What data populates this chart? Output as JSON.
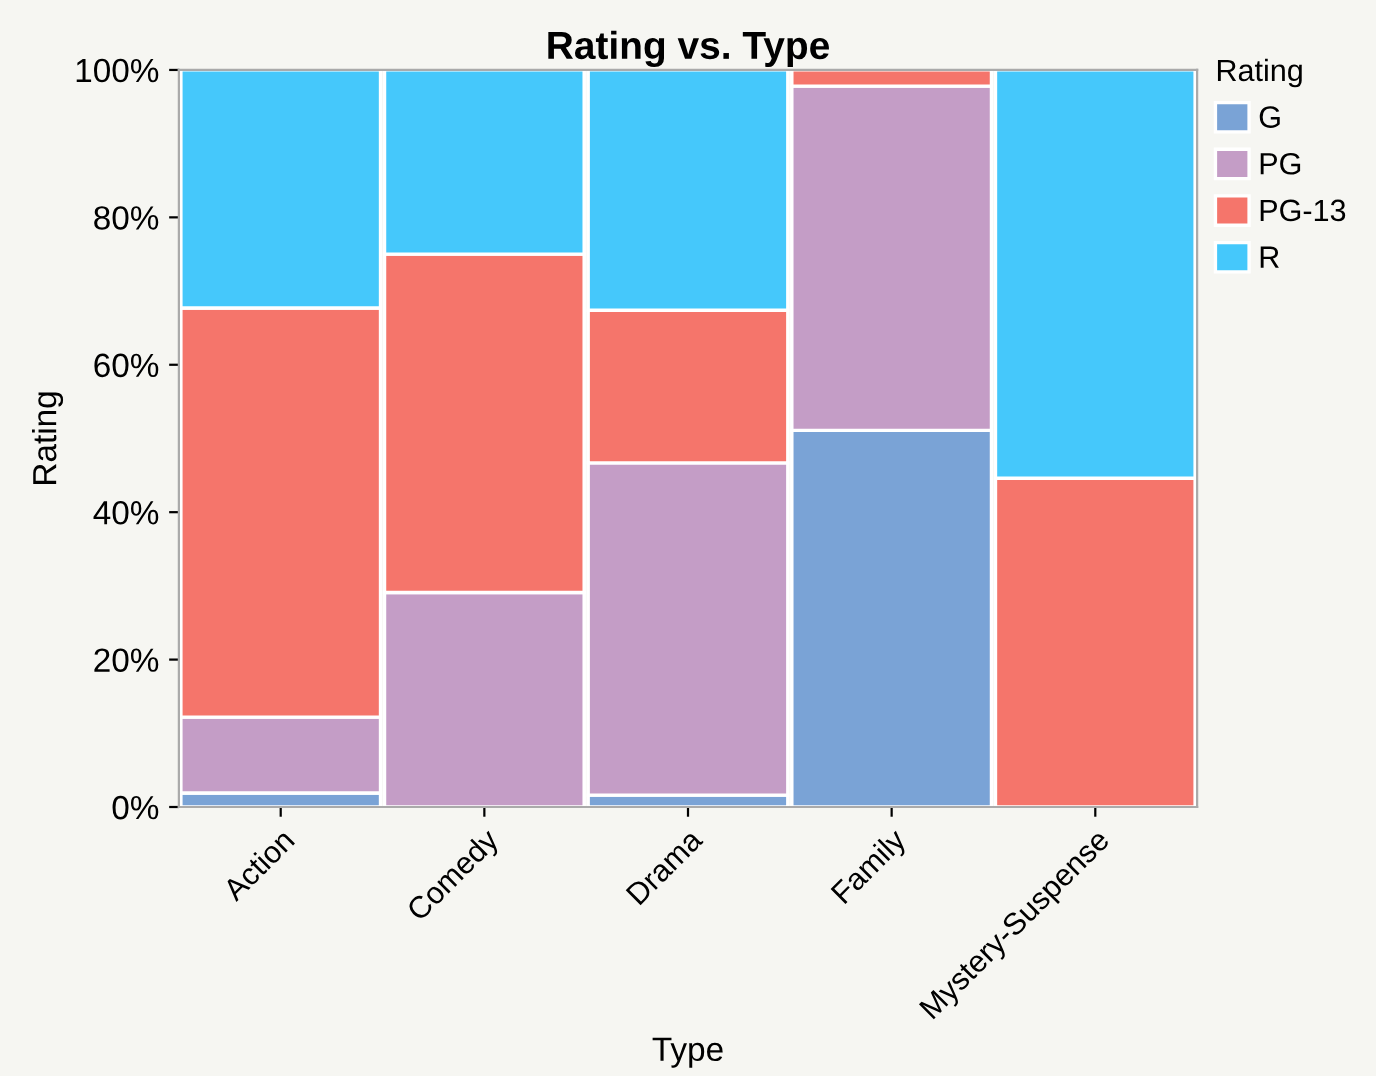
{
  "chart_data": {
    "type": "bar",
    "title": "Rating vs. Type",
    "xlabel": "Type",
    "ylabel": "Rating",
    "legend_title": "Rating",
    "categories": [
      "Action",
      "Comedy",
      "Drama",
      "Family",
      "Mystery-Suspense"
    ],
    "stacked": true,
    "series": [
      {
        "name": "G",
        "color": "#7aa3d6",
        "values": [
          1.9,
          0,
          1.6,
          51.1,
          0
        ]
      },
      {
        "name": "PG",
        "color": "#c49dc6",
        "values": [
          10.3,
          29.1,
          45.1,
          46.7,
          0
        ]
      },
      {
        "name": "PG-13",
        "color": "#f5756b",
        "values": [
          55.5,
          45.9,
          20.7,
          2.2,
          44.6
        ]
      },
      {
        "name": "R",
        "color": "#45c8fb",
        "values": [
          32.3,
          25.0,
          32.6,
          0,
          55.4
        ]
      }
    ],
    "ylim": [
      0,
      100
    ],
    "yticks": [
      {
        "value": 0,
        "label": "0%"
      },
      {
        "value": 20,
        "label": "20%"
      },
      {
        "value": 40,
        "label": "40%"
      },
      {
        "value": 60,
        "label": "60%"
      },
      {
        "value": 80,
        "label": "80%"
      },
      {
        "value": 100,
        "label": "100%"
      }
    ],
    "grid": false,
    "legend": "right"
  }
}
